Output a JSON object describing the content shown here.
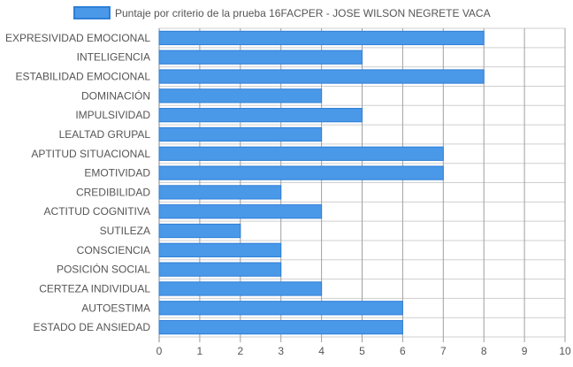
{
  "colors": {
    "bar_fill": "#4a98e8",
    "bar_stroke": "#2f7fd6",
    "grid": "#cfcfcf",
    "grid_major": "#8a8a8a",
    "label": "#555555",
    "legend_text": "#555555"
  },
  "chart_data": {
    "type": "bar",
    "orientation": "horizontal",
    "legend_position": "top",
    "grid": true,
    "xlim": [
      0,
      10
    ],
    "x_ticks": [
      "0",
      "1",
      "2",
      "3",
      "4",
      "5",
      "6",
      "7",
      "8",
      "9",
      "10"
    ],
    "categories": [
      "EXPRESIVIDAD EMOCIONAL",
      "INTELIGENCIA",
      "ESTABILIDAD EMOCIONAL",
      "DOMINACIÓN",
      "IMPULSIVIDAD",
      "LEALTAD GRUPAL",
      "APTITUD SITUACIONAL",
      "EMOTIVIDAD",
      "CREDIBILIDAD",
      "ACTITUD COGNITIVA",
      "SUTILEZA",
      "CONSCIENCIA",
      "POSICIÓN SOCIAL",
      "CERTEZA INDIVIDUAL",
      "AUTOESTIMA",
      "ESTADO DE ANSIEDAD"
    ],
    "series": [
      {
        "name": "Puntaje por criterio de la prueba 16FACPER - JOSE WILSON NEGRETE VACA",
        "values": [
          8,
          5,
          8,
          4,
          5,
          4,
          7,
          7,
          3,
          4,
          2,
          3,
          3,
          4,
          6,
          6
        ]
      }
    ]
  }
}
